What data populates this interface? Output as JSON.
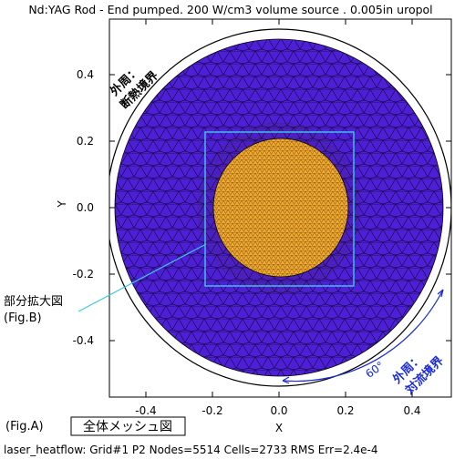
{
  "title": "Nd:YAG Rod - End pumped.  200 W/cm3 volume source . 0.005in uropol",
  "axes": {
    "xlabel": "X",
    "ylabel": "Y",
    "x_ticks": [
      "-0.4",
      "-0.2",
      "0.0",
      "0.2",
      "0.4"
    ],
    "y_ticks": [
      "0.4",
      "0.2",
      "0.0",
      "-0.2",
      "-0.4"
    ]
  },
  "annotations": {
    "outer_line1": "外周：",
    "outer_line2": "断熱境界",
    "partial_line1": "部分拡大図",
    "partial_line2": "(Fig.B)",
    "angle": "60°",
    "convection_line1": "外周：",
    "convection_line2": "対流境界"
  },
  "figure_label": "(Fig.A)",
  "figure_title": "全体メッシュ図",
  "footer": "laser_heatflow: Grid#1  P2  Nodes=5514  Cells=2733  RMS Err=2.4e-4",
  "colors": {
    "outer_region": "#4d1fd6",
    "rod_region": "#f0a830",
    "zoom_box": "#40c8e8",
    "annotation_blue": "#1a2ad8"
  }
}
